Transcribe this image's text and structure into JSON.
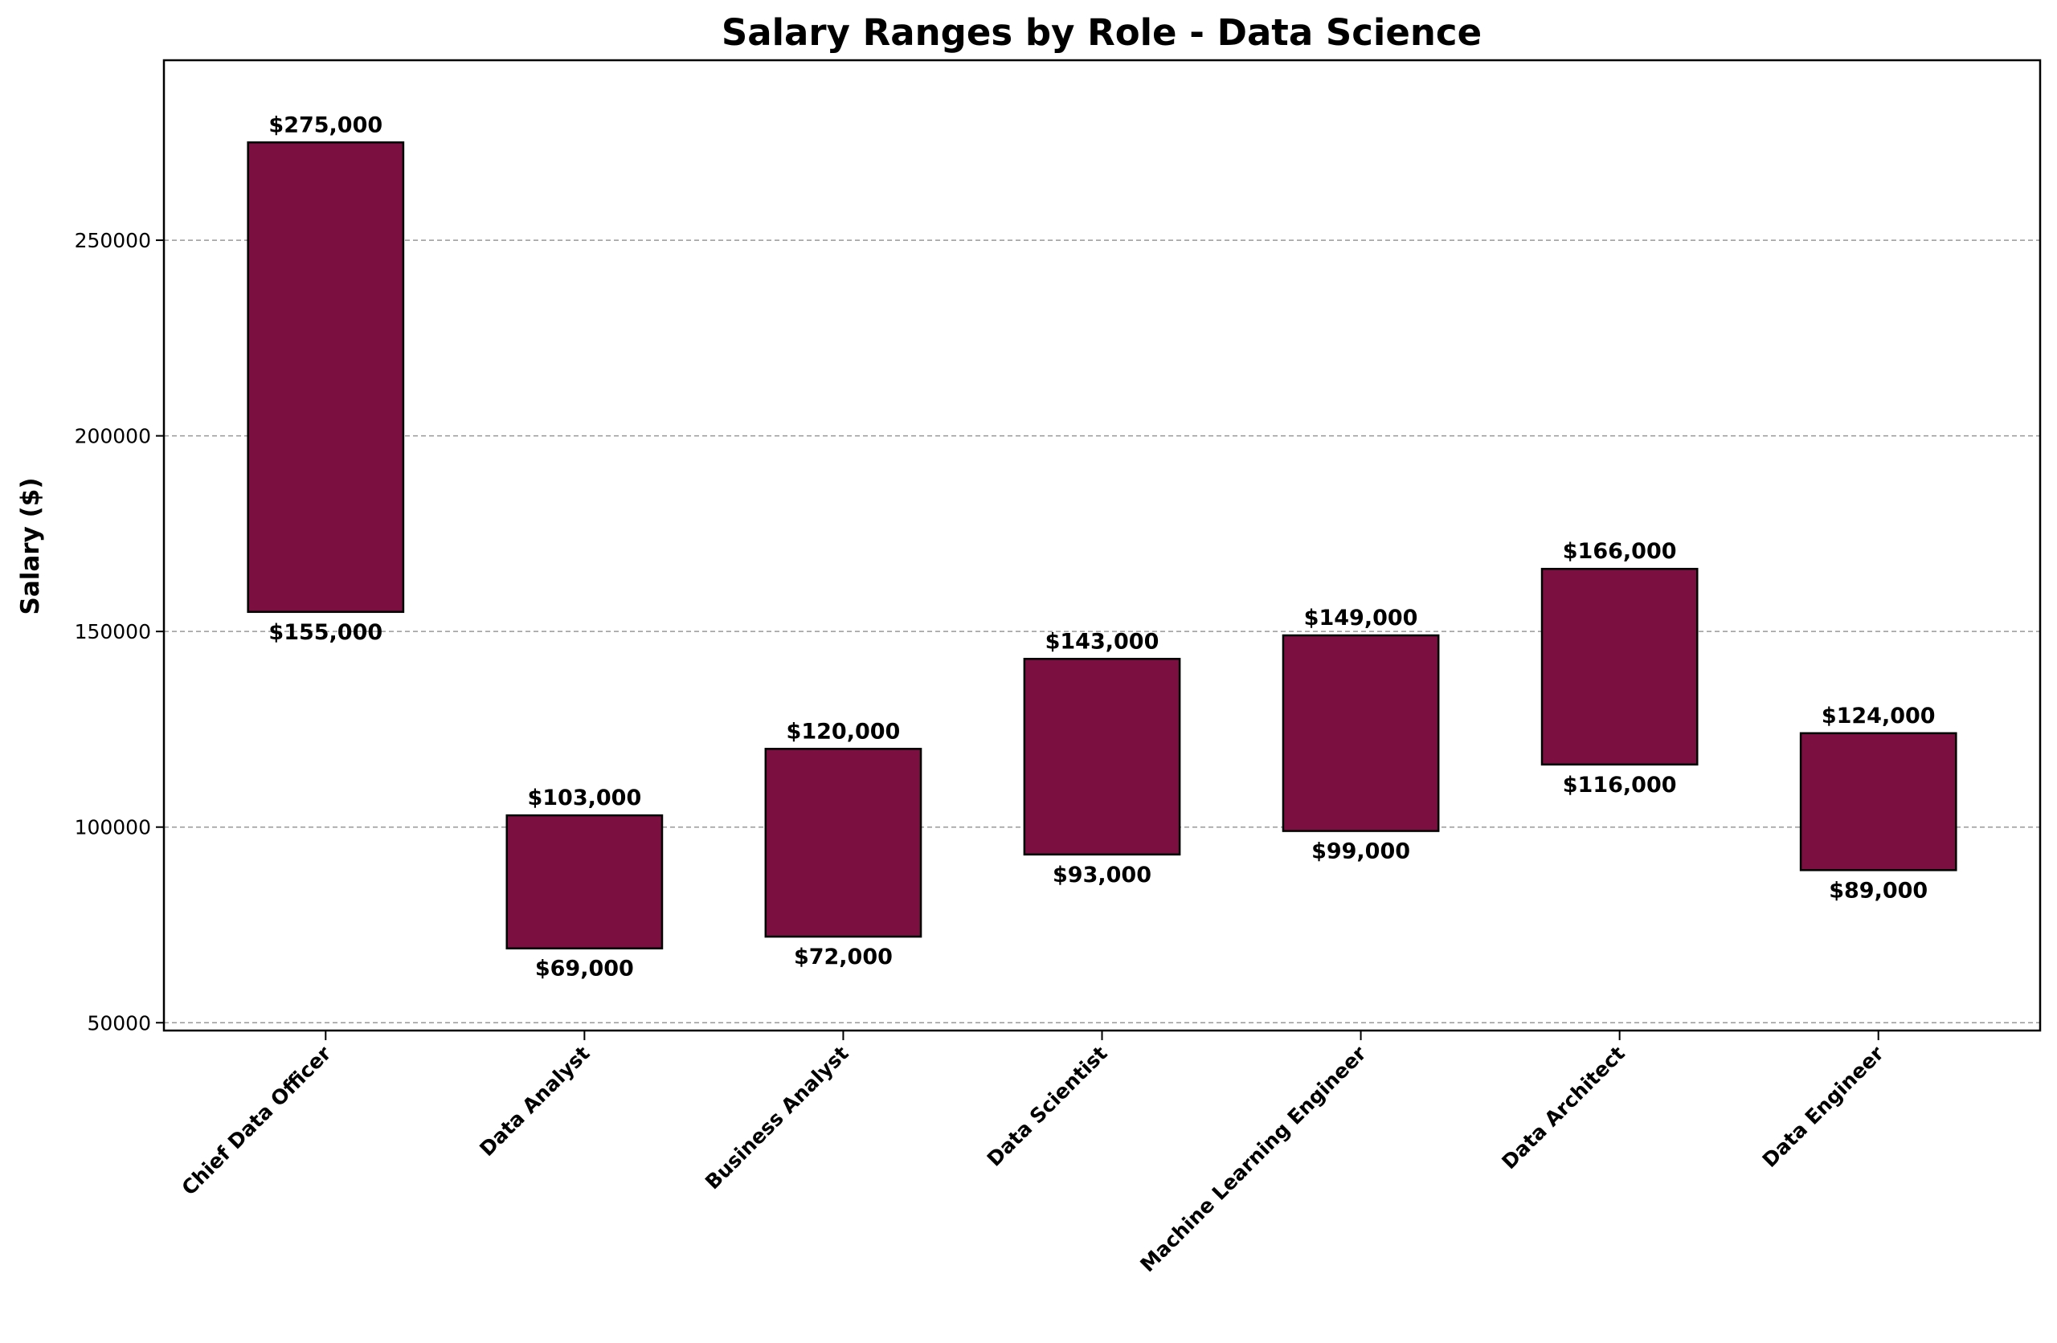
{
  "chart_data": {
    "type": "bar",
    "subtype": "floating-range",
    "title": "Salary Ranges by Role - Data Science",
    "xlabel": "",
    "ylabel": "Salary ($)",
    "categories": [
      "Chief Data Officer",
      "Data Analyst",
      "Business Analyst",
      "Data Scientist",
      "Machine Learning Engineer",
      "Data Architect",
      "Data Engineer"
    ],
    "series": [
      {
        "low": [
          155000,
          69000,
          72000,
          93000,
          99000,
          116000,
          89000
        ],
        "high": [
          275000,
          103000,
          120000,
          143000,
          149000,
          166000,
          124000
        ]
      }
    ],
    "high_labels": [
      "$275,000",
      "$103,000",
      "$120,000",
      "$143,000",
      "$149,000",
      "$166,000",
      "$124,000"
    ],
    "low_labels": [
      "$155,000",
      "$69,000",
      "$72,000",
      "$93,000",
      "$99,000",
      "$116,000",
      "$89,000"
    ],
    "yticks": [
      50000,
      100000,
      150000,
      200000,
      250000
    ],
    "ytick_labels": [
      "50000",
      "100000",
      "150000",
      "200000",
      "250000"
    ],
    "ylim": [
      48000,
      296000
    ],
    "grid": "y dashed",
    "legend": "none",
    "colors": {
      "bar": "#7a0f40",
      "edge": "#000000",
      "grid": "#999999"
    }
  }
}
